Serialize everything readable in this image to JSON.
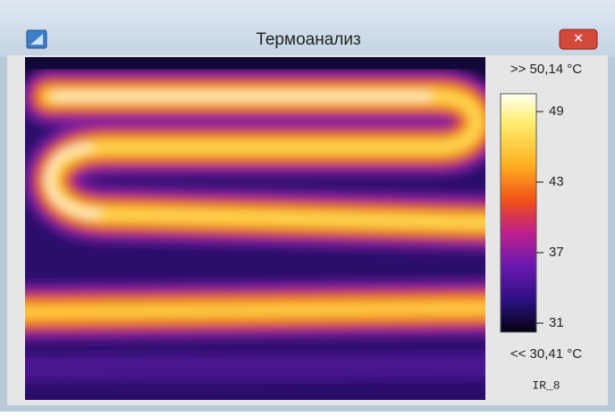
{
  "window": {
    "title": "Термоанализ"
  },
  "thermogram": {
    "max_label": ">> 50,14 °C",
    "min_label": "<< 30,41 °C",
    "scale_ticks": [
      31,
      37,
      43,
      49
    ],
    "image_name": "IR_8"
  }
}
